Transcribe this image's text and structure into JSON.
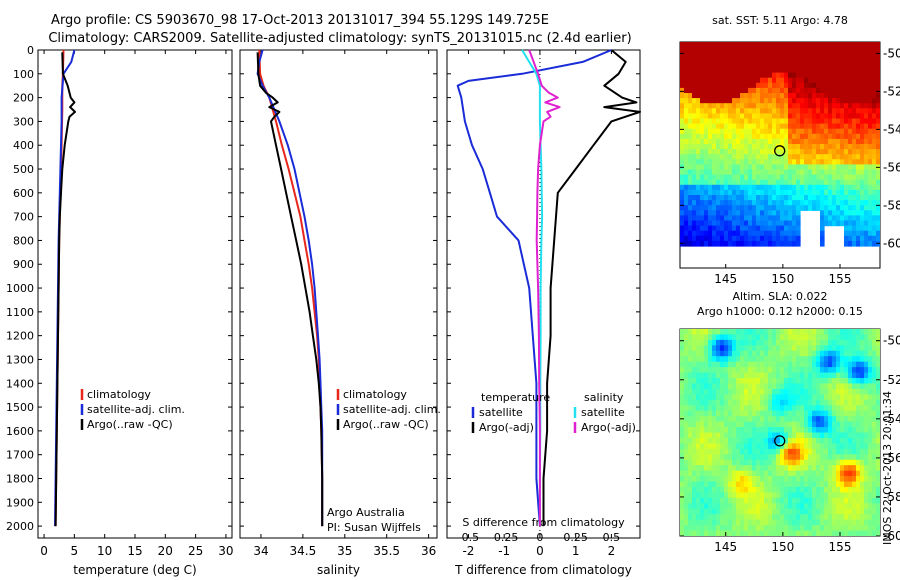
{
  "header": {
    "title_line1": "Argo profile: CS 5903670_98 17-Oct-2013 20131017_394 55.129S 149.725E",
    "title_line2": "Climatology: CARS2009. Satellite-adjusted climatology: synTS_20131015.nc (2.4d earlier)"
  },
  "colors": {
    "climatology": "#e8271c",
    "satellite": "#1a2cd8",
    "argo": "#000000",
    "sal_satellite": "#22e0f0",
    "sal_argo": "#e020d0"
  },
  "footer": {
    "institute_stamp": "IMOS 22-Oct-2013 20:01:34"
  },
  "chart_data": [
    {
      "id": "temperature",
      "type": "line",
      "xlabel": "temperature (deg C)",
      "xlim": [
        -1,
        31
      ],
      "xticks": [
        0,
        5,
        10,
        15,
        20,
        25,
        30
      ],
      "ylim": [
        0,
        2050
      ],
      "yticks": [
        0,
        100,
        200,
        300,
        400,
        500,
        600,
        700,
        800,
        900,
        1000,
        1100,
        1200,
        1300,
        1400,
        1500,
        1600,
        1700,
        1800,
        1900,
        2000
      ],
      "legend": {
        "placement": "middle-right",
        "entries": [
          "climatology",
          "satellite-adj. clim.",
          "Argo(..raw -QC)"
        ]
      },
      "series": [
        {
          "name": "climatology",
          "color": "#e8271c",
          "depth": [
            0,
            100,
            150,
            250,
            400,
            600,
            800,
            1000,
            1200,
            1400,
            1600,
            1800,
            2000
          ],
          "values": [
            3.2,
            3.1,
            3.0,
            3.0,
            2.9,
            2.7,
            2.5,
            2.4,
            2.3,
            2.2,
            2.1,
            2.0,
            1.9
          ]
        },
        {
          "name": "satellite-adj. clim.",
          "color": "#1a2cd8",
          "depth": [
            0,
            50,
            100,
            200,
            300,
            400,
            500,
            600,
            700,
            800,
            1000,
            1200,
            1400,
            1600,
            1800,
            2000
          ],
          "values": [
            5.0,
            4.5,
            3.2,
            2.9,
            2.9,
            2.8,
            2.7,
            2.6,
            2.5,
            2.4,
            2.3,
            2.2,
            2.1,
            2.0,
            1.9,
            1.8
          ]
        },
        {
          "name": "Argo(..raw -QC)",
          "color": "#000000",
          "depth": [
            10,
            100,
            150,
            200,
            220,
            240,
            260,
            280,
            300,
            400,
            500,
            600,
            700,
            800,
            1000,
            1200,
            1400,
            1600,
            1800,
            2000
          ],
          "values": [
            3.0,
            3.1,
            3.9,
            4.4,
            5.0,
            4.3,
            5.1,
            4.2,
            4.0,
            3.4,
            3.0,
            2.8,
            2.6,
            2.5,
            2.4,
            2.3,
            2.2,
            2.1,
            2.0,
            1.9
          ]
        }
      ]
    },
    {
      "id": "salinity",
      "type": "line",
      "xlabel": "salinity",
      "xlim": [
        33.75,
        36.1
      ],
      "xticks": [
        34,
        34.5,
        35,
        35.5,
        36
      ],
      "ylim": [
        0,
        2050
      ],
      "legend": {
        "placement": "middle-right",
        "entries": [
          "climatology",
          "satellite-adj. clim.",
          "Argo(..raw -QC)"
        ]
      },
      "annotation": [
        "Argo Australia",
        "PI: Susan Wijffels"
      ],
      "series": [
        {
          "name": "climatology",
          "color": "#e8271c",
          "depth": [
            0,
            100,
            150,
            200,
            300,
            400,
            500,
            600,
            700,
            800,
            900,
            1000,
            1100,
            1200,
            1300,
            1400,
            1500,
            1600,
            1800,
            2000
          ],
          "values": [
            33.98,
            33.99,
            34.03,
            34.1,
            34.18,
            34.25,
            34.33,
            34.4,
            34.47,
            34.52,
            34.57,
            34.61,
            34.64,
            34.67,
            34.69,
            34.7,
            34.71,
            34.72,
            34.73,
            34.73
          ]
        },
        {
          "name": "satellite-adj. clim.",
          "color": "#1a2cd8",
          "depth": [
            0,
            50,
            100,
            150,
            200,
            300,
            400,
            500,
            600,
            700,
            800,
            900,
            1000,
            1100,
            1200,
            1300,
            1400,
            1500,
            1600,
            1800,
            2000
          ],
          "values": [
            34.02,
            33.98,
            33.96,
            34.02,
            34.1,
            34.22,
            34.32,
            34.4,
            34.46,
            34.52,
            34.57,
            34.61,
            34.64,
            34.66,
            34.68,
            34.7,
            34.71,
            34.72,
            34.73,
            34.73,
            34.73
          ]
        },
        {
          "name": "Argo(..raw -QC)",
          "color": "#000000",
          "depth": [
            10,
            100,
            150,
            180,
            200,
            220,
            240,
            260,
            280,
            300,
            350,
            400,
            500,
            600,
            700,
            800,
            900,
            1000,
            1100,
            1200,
            1300,
            1400,
            1500,
            1600,
            1800,
            2000
          ],
          "values": [
            33.96,
            33.97,
            33.99,
            34.06,
            34.14,
            34.2,
            34.1,
            34.22,
            34.16,
            34.12,
            34.15,
            34.18,
            34.24,
            34.3,
            34.36,
            34.42,
            34.48,
            34.53,
            34.58,
            34.62,
            34.66,
            34.69,
            34.71,
            34.72,
            34.73,
            34.73
          ]
        }
      ]
    },
    {
      "id": "difference",
      "type": "line",
      "xlabel": "T difference from climatology",
      "xlim": [
        -2.6,
        2.8
      ],
      "xticks": [
        -2,
        -1,
        0,
        1,
        2
      ],
      "top_axis_label": "S difference from climatology",
      "top_ticks": [
        "-0.5",
        "-0.25",
        "0",
        "0.25",
        "0.5"
      ],
      "ylim": [
        0,
        2050
      ],
      "legend": {
        "placement": "middle",
        "group1_title": "temperature",
        "group1_entries": [
          "satellite",
          "Argo(-adj)"
        ],
        "group2_title": "salinity",
        "group2_entries": [
          "satellite",
          "Argo(-adj)"
        ]
      },
      "series": [
        {
          "name": "temperature satellite",
          "color": "#1a2cd8",
          "depth": [
            0,
            50,
            100,
            130,
            150,
            200,
            300,
            400,
            500,
            600,
            700,
            800,
            1000,
            1200,
            1400,
            1600,
            1800,
            2000
          ],
          "values": [
            2.0,
            1.2,
            -0.5,
            -2.0,
            -2.3,
            -2.2,
            -2.1,
            -1.9,
            -1.6,
            -1.4,
            -1.2,
            -0.6,
            -0.3,
            -0.2,
            -0.1,
            -0.1,
            -0.1,
            0.0
          ]
        },
        {
          "name": "temperature Argo(-adj)",
          "color": "#000000",
          "depth": [
            0,
            50,
            100,
            150,
            200,
            220,
            240,
            260,
            300,
            400,
            500,
            600,
            800,
            1000,
            1200,
            1400,
            1600,
            1800,
            2000
          ],
          "values": [
            2.0,
            2.4,
            2.2,
            1.8,
            2.3,
            2.7,
            1.8,
            2.8,
            2.0,
            1.5,
            1.0,
            0.5,
            0.4,
            0.3,
            0.3,
            0.2,
            0.2,
            0.1,
            0.1
          ]
        },
        {
          "name": "salinity satellite",
          "color": "#22e0f0",
          "depth": [
            0,
            50,
            100,
            150,
            200,
            300,
            400,
            500,
            600,
            700,
            800,
            1000,
            1200,
            1400,
            1600,
            1800,
            2000
          ],
          "values": [
            -0.5,
            -0.3,
            -0.1,
            0.0,
            0.0,
            0.0,
            0.02,
            0.04,
            0.05,
            0.06,
            0.04,
            0.02,
            0.02,
            0.01,
            0.01,
            0.0,
            0.0
          ]
        },
        {
          "name": "salinity Argo(-adj)",
          "color": "#e020d0",
          "depth": [
            0,
            100,
            150,
            180,
            200,
            220,
            240,
            260,
            280,
            300,
            400,
            500,
            600,
            700,
            800,
            1000,
            1200,
            1400,
            1600,
            1800,
            2000
          ],
          "values": [
            -0.3,
            -0.05,
            0.05,
            0.25,
            0.5,
            0.15,
            0.55,
            0.2,
            0.3,
            0.1,
            0.0,
            -0.05,
            -0.07,
            -0.08,
            -0.09,
            -0.05,
            -0.03,
            -0.02,
            0.0,
            0.0,
            0.0
          ]
        }
      ]
    },
    {
      "id": "sst_map",
      "type": "heatmap",
      "title": "sat. SST: 5.11  Argo: 4.78",
      "xlim": [
        141,
        158.5
      ],
      "ylim": [
        -61.3,
        -49.4
      ],
      "xticks": [
        145,
        150,
        155
      ],
      "yticks": [
        -50,
        -52,
        -54,
        -56,
        -58,
        -60
      ],
      "profile_lon": 149.725,
      "profile_lat": -55.129
    },
    {
      "id": "sla_map",
      "type": "heatmap",
      "title": "Altim. SLA: 0.022",
      "subtitle": "Argo h1000: 0.12 h2000: 0.15",
      "xlim": [
        141,
        158.5
      ],
      "ylim": [
        -60,
        -49.4
      ],
      "xticks": [
        145,
        150,
        155
      ],
      "yticks": [
        -50,
        -52,
        -54,
        -56,
        -58,
        -60
      ],
      "profile_lon": 149.725,
      "profile_lat": -55.129
    }
  ]
}
